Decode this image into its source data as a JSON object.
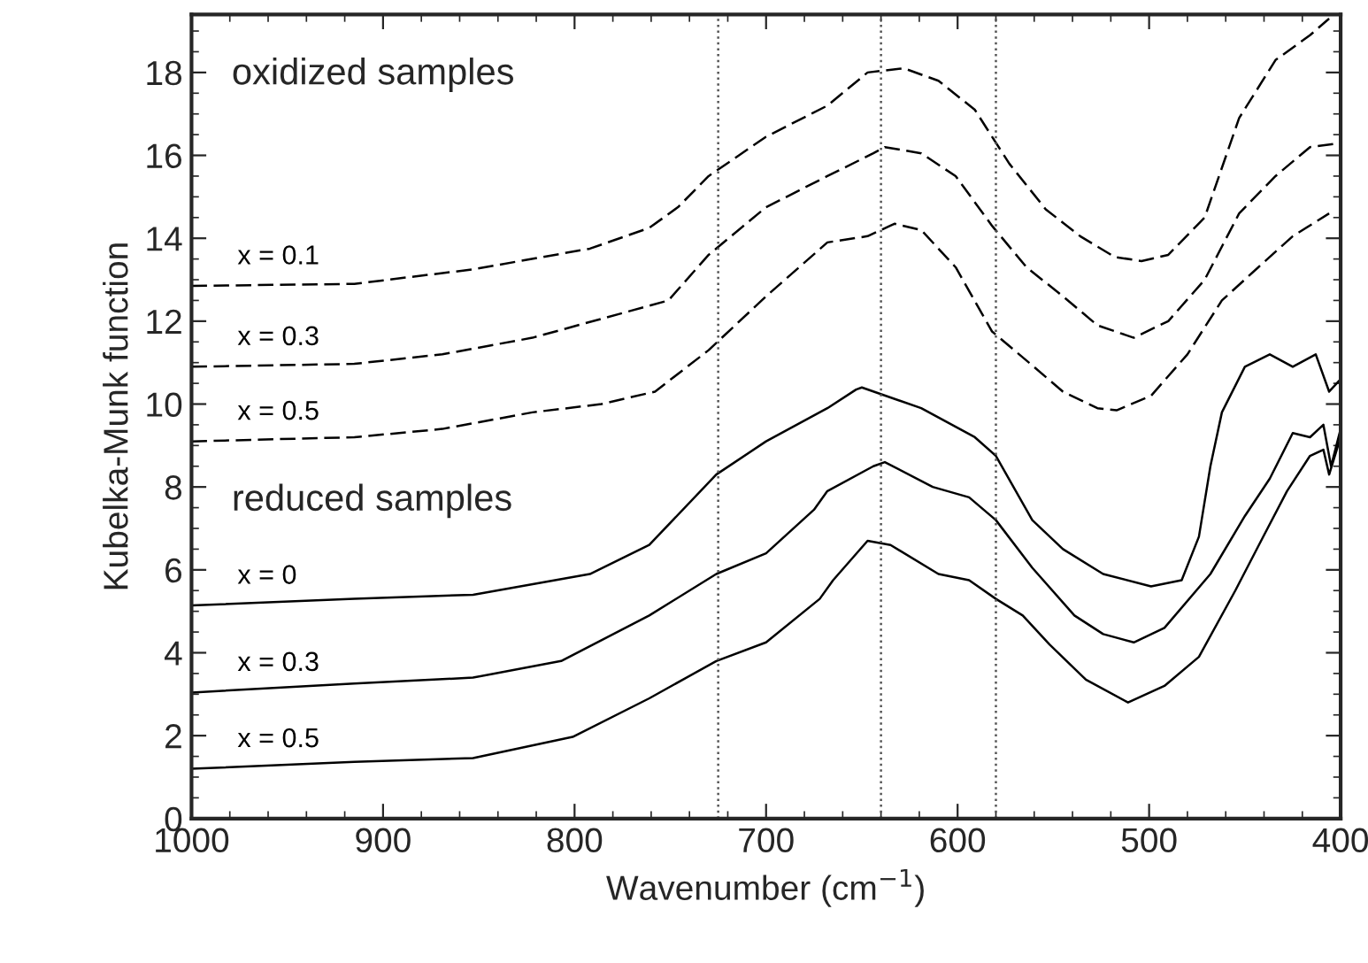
{
  "chart_data": {
    "type": "line",
    "xlabel": "Wavenumber (cm$^{−1}$)",
    "ylabel": "Kubelka-Munk function",
    "annotations": [
      "oxidized samples",
      "reduced samples"
    ],
    "xlim": [
      1000,
      400
    ],
    "ylim": [
      0,
      19.4
    ],
    "xticks": [
      1000,
      900,
      800,
      700,
      600,
      500,
      400
    ],
    "yticks": [
      0,
      2,
      4,
      6,
      8,
      10,
      12,
      14,
      16,
      18
    ],
    "grid": false,
    "legend": false,
    "marker": "none",
    "ref_lines": [
      {
        "axis": "x",
        "value": 725,
        "color": "#555555",
        "line_style": "dotted"
      },
      {
        "axis": "x",
        "value": 640,
        "color": "#555555",
        "line_style": "dotted"
      },
      {
        "axis": "x",
        "value": 580,
        "color": "#555555",
        "line_style": "dotted"
      }
    ],
    "series": [
      {
        "name": "x = 0.1",
        "color": "#000000",
        "line_style": "dashed",
        "x": [
          1000,
          915,
          853,
          792,
          761,
          746,
          730,
          700,
          668,
          647,
          628,
          610,
          591,
          573,
          554,
          536,
          518,
          504,
          490,
          471,
          453,
          434,
          416,
          406
        ],
        "values": [
          12.85,
          12.9,
          13.25,
          13.75,
          14.25,
          14.75,
          15.5,
          16.45,
          17.2,
          18.0,
          18.1,
          17.8,
          17.1,
          15.8,
          14.7,
          14.05,
          13.55,
          13.45,
          13.6,
          14.5,
          16.9,
          18.3,
          18.9,
          19.3
        ]
      },
      {
        "name": "x = 0.3",
        "color": "#000000",
        "line_style": "dashed",
        "x": [
          1000,
          915,
          869,
          822,
          751,
          730,
          700,
          668,
          644,
          638,
          619,
          601,
          582,
          564,
          545,
          527,
          508,
          490,
          471,
          453,
          434,
          416,
          400
        ],
        "values": [
          10.9,
          10.97,
          11.2,
          11.6,
          12.5,
          13.6,
          14.75,
          15.5,
          16.05,
          16.2,
          16.05,
          15.5,
          14.3,
          13.3,
          12.6,
          11.9,
          11.6,
          12.0,
          13.0,
          14.6,
          15.5,
          16.2,
          16.3
        ]
      },
      {
        "name": "x = 0.5",
        "color": "#000000",
        "line_style": "dashed",
        "x": [
          1000,
          915,
          869,
          822,
          786,
          758,
          730,
          700,
          668,
          647,
          633,
          619,
          601,
          582,
          564,
          545,
          527,
          517,
          499,
          480,
          462,
          443,
          425,
          406
        ],
        "values": [
          9.1,
          9.2,
          9.4,
          9.8,
          10.0,
          10.3,
          11.3,
          12.6,
          13.9,
          14.05,
          14.35,
          14.2,
          13.3,
          11.75,
          11.05,
          10.3,
          9.9,
          9.85,
          10.2,
          11.2,
          12.5,
          13.3,
          14.05,
          14.6
        ]
      },
      {
        "name": "x = 0",
        "color": "#000000",
        "line_style": "solid",
        "x": [
          1000,
          915,
          853,
          792,
          761,
          726,
          700,
          668,
          653,
          650,
          619,
          591,
          580,
          561,
          545,
          524,
          499,
          483,
          474,
          468,
          462,
          450,
          437,
          425,
          413,
          406,
          400
        ],
        "values": [
          5.14,
          5.3,
          5.4,
          5.9,
          6.6,
          8.3,
          9.1,
          9.9,
          10.35,
          10.4,
          9.9,
          9.2,
          8.75,
          7.2,
          6.5,
          5.9,
          5.6,
          5.75,
          6.8,
          8.5,
          9.8,
          10.9,
          11.2,
          10.9,
          11.2,
          10.3,
          10.6
        ]
      },
      {
        "name": "x = 0.3",
        "color": "#000000",
        "line_style": "solid",
        "x": [
          1000,
          915,
          853,
          807,
          761,
          726,
          700,
          675,
          668,
          644,
          638,
          613,
          594,
          580,
          561,
          539,
          524,
          508,
          492,
          468,
          450,
          437,
          425,
          416,
          409,
          405,
          400
        ],
        "values": [
          3.04,
          3.26,
          3.4,
          3.8,
          4.9,
          5.9,
          6.4,
          7.45,
          7.9,
          8.5,
          8.6,
          8.0,
          7.75,
          7.2,
          6.05,
          4.9,
          4.45,
          4.25,
          4.6,
          5.9,
          7.3,
          8.2,
          9.3,
          9.2,
          9.5,
          8.5,
          9.4
        ]
      },
      {
        "name": "x = 0.5",
        "color": "#000000",
        "line_style": "solid",
        "x": [
          1000,
          915,
          853,
          801,
          761,
          726,
          700,
          672,
          665,
          647,
          635,
          610,
          594,
          580,
          566,
          552,
          533,
          511,
          492,
          474,
          455,
          441,
          428,
          416,
          409,
          406,
          400
        ],
        "values": [
          1.2,
          1.37,
          1.46,
          1.97,
          2.9,
          3.8,
          4.25,
          5.3,
          5.75,
          6.7,
          6.6,
          5.9,
          5.75,
          5.3,
          4.9,
          4.2,
          3.35,
          2.8,
          3.2,
          3.9,
          5.5,
          6.75,
          7.9,
          8.75,
          8.9,
          8.3,
          9.2
        ]
      }
    ]
  }
}
